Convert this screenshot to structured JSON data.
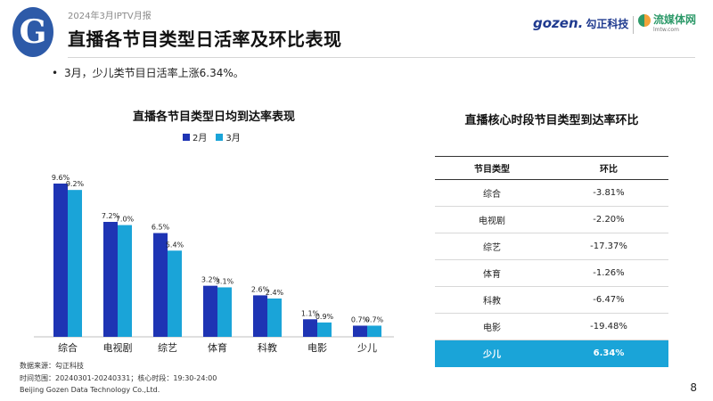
{
  "header": {
    "logo_glyph": "G",
    "report_label": "2024年3月IPTV月报",
    "title": "直播各节目类型日活率及环比表现",
    "brand_gozen_word": "gozen.",
    "brand_gozen_cn": "勾正科技",
    "brand_lmtw_name": "流媒体网",
    "brand_lmtw_url": "lmtw.com"
  },
  "bullet": "3月，少儿类节目日活率上涨6.34%。",
  "colors": {
    "feb": "#1e34b4",
    "mar": "#1aa4d8",
    "highlight": "#1aa4d8"
  },
  "chart_data": {
    "type": "bar",
    "title": "直播各节目类型日均到达率表现",
    "categories": [
      "综合",
      "电视剧",
      "综艺",
      "体育",
      "科教",
      "电影",
      "少儿"
    ],
    "series": [
      {
        "name": "2月",
        "values": [
          9.6,
          7.2,
          6.5,
          3.2,
          2.6,
          1.1,
          0.7
        ],
        "labels": [
          "9.6%",
          "7.2%",
          "6.5%",
          "3.2%",
          "2.6%",
          "1.1%",
          "0.7%"
        ]
      },
      {
        "name": "3月",
        "values": [
          9.2,
          7.0,
          5.4,
          3.1,
          2.4,
          0.9,
          0.7
        ],
        "labels": [
          "9.2%",
          "7.0%",
          "5.4%",
          "3.1%",
          "2.4%",
          "0.9%",
          "0.7%"
        ]
      }
    ],
    "xlabel": "",
    "ylabel": "",
    "ylim": [
      0,
      10
    ],
    "grid": false,
    "legend": "top-center"
  },
  "table": {
    "title": "直播核心时段节目类型到达率环比",
    "headers": [
      "节目类型",
      "环比"
    ],
    "rows": [
      [
        "综合",
        "-3.81%"
      ],
      [
        "电视剧",
        "-2.20%"
      ],
      [
        "综艺",
        "-17.37%"
      ],
      [
        "体育",
        "-1.26%"
      ],
      [
        "科教",
        "-6.47%"
      ],
      [
        "电影",
        "-19.48%"
      ],
      [
        "少儿",
        "6.34%"
      ]
    ],
    "highlight_row": 6
  },
  "footnotes": {
    "source": "数据来源：勾正科技",
    "period": "时间范围：20240301-20240331；核心时段：19:30-24:00",
    "company": "Beijing Gozen Data Technology Co.,Ltd."
  },
  "page_number": "8"
}
